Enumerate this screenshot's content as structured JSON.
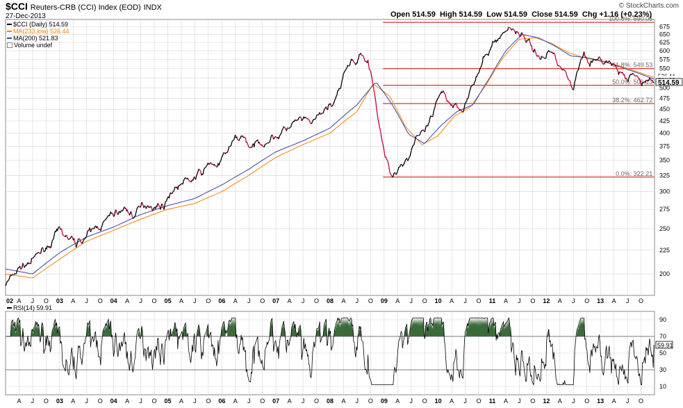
{
  "header": {
    "symbol": "$CCI",
    "description": "Reuters-CRB (CCI) Index (EOD)",
    "exchange": "INDX",
    "date": "27-Dec-2013",
    "brand": "© StockCharts.com",
    "open_label": "Open",
    "open": "514.59",
    "high_label": "High",
    "high": "514.59",
    "low_label": "Low",
    "low": "514.59",
    "close_label": "Close",
    "close": "514.59",
    "chg_label": "Chg",
    "chg": "+1.16 (+0.23%)"
  },
  "legend": {
    "price": "$CCI (Daily) 514.59",
    "ma233": "MA(233,low) 526.44",
    "ma200": "MA(200) 521.83",
    "volume": "Volume undef",
    "rsi": "RSI(14) 59.91"
  },
  "colors": {
    "price": "#cc0033",
    "price_up": "#000000",
    "ma233": "#ff7f00",
    "ma200": "#3344aa",
    "fib": "#cc0000",
    "grid": "#d4d4d4",
    "rsi": "#000000",
    "rsi_fill": "#3b6b3b"
  },
  "chart_data": [
    {
      "type": "line",
      "title": "Reuters-CRB (CCI) Index (EOD)",
      "y_scale": "log",
      "ylim": [
        180,
        700
      ],
      "y_ticks": [
        200,
        225,
        250,
        275,
        300,
        325,
        350,
        375,
        400,
        425,
        450,
        475,
        500,
        525,
        550,
        575,
        600,
        625,
        650,
        675
      ],
      "x_range": [
        2002.0,
        2014.0
      ],
      "x_tick_labels": [
        "02",
        "A",
        "J",
        "O",
        "03",
        "A",
        "J",
        "O",
        "04",
        "A",
        "J",
        "O",
        "05",
        "A",
        "J",
        "O",
        "06",
        "A",
        "J",
        "O",
        "07",
        "A",
        "J",
        "O",
        "08",
        "A",
        "J",
        "O",
        "09",
        "A",
        "J",
        "O",
        "10",
        "A",
        "J",
        "O",
        "11",
        "A",
        "J",
        "O",
        "12",
        "A",
        "J",
        "O",
        "13",
        "A",
        "J",
        "O"
      ],
      "series": [
        {
          "name": "$CCI (Daily)",
          "last": 514.59,
          "x": [
            2002.0,
            2002.1,
            2002.25,
            2002.4,
            2002.55,
            2002.7,
            2002.85,
            2003.0,
            2003.15,
            2003.3,
            2003.45,
            2003.6,
            2003.75,
            2003.9,
            2004.05,
            2004.2,
            2004.35,
            2004.5,
            2004.65,
            2004.8,
            2004.95,
            2005.05,
            2005.2,
            2005.35,
            2005.5,
            2005.65,
            2005.8,
            2005.95,
            2006.1,
            2006.25,
            2006.4,
            2006.55,
            2006.7,
            2006.85,
            2007.0,
            2007.15,
            2007.3,
            2007.45,
            2007.6,
            2007.75,
            2007.9,
            2008.05,
            2008.2,
            2008.3,
            2008.4,
            2008.5,
            2008.6,
            2008.7,
            2008.8,
            2008.9,
            2008.96,
            2009.05,
            2009.15,
            2009.3,
            2009.45,
            2009.6,
            2009.75,
            2009.9,
            2010.0,
            2010.1,
            2010.25,
            2010.35,
            2010.45,
            2010.55,
            2010.7,
            2010.85,
            2011.0,
            2011.1,
            2011.25,
            2011.33,
            2011.45,
            2011.55,
            2011.65,
            2011.75,
            2011.85,
            2011.95,
            2012.05,
            2012.2,
            2012.3,
            2012.4,
            2012.5,
            2012.6,
            2012.7,
            2012.8,
            2012.9,
            2013.0,
            2013.1,
            2013.2,
            2013.35,
            2013.5,
            2013.6,
            2013.75,
            2013.9,
            2013.99
          ],
          "y": [
            190,
            195,
            205,
            210,
            215,
            225,
            235,
            245,
            238,
            232,
            240,
            245,
            255,
            262,
            270,
            275,
            268,
            275,
            285,
            280,
            283,
            300,
            310,
            315,
            320,
            330,
            345,
            340,
            365,
            385,
            395,
            370,
            380,
            390,
            395,
            405,
            415,
            425,
            415,
            425,
            445,
            465,
            495,
            545,
            575,
            560,
            600,
            575,
            520,
            420,
            380,
            345,
            325,
            345,
            355,
            400,
            395,
            430,
            465,
            480,
            465,
            460,
            455,
            490,
            520,
            570,
            615,
            640,
            660,
            675,
            665,
            650,
            635,
            600,
            595,
            575,
            600,
            580,
            560,
            520,
            500,
            560,
            595,
            580,
            570,
            565,
            570,
            560,
            540,
            510,
            530,
            515,
            520,
            514.59
          ]
        },
        {
          "name": "MA(233,low)",
          "last": 526.44,
          "x": [
            2002.0,
            2002.5,
            2003.0,
            2003.5,
            2004.0,
            2004.5,
            2005.0,
            2005.5,
            2006.0,
            2006.5,
            2007.0,
            2007.5,
            2008.0,
            2008.5,
            2008.8,
            2009.1,
            2009.4,
            2009.7,
            2010.0,
            2010.3,
            2010.6,
            2010.9,
            2011.2,
            2011.5,
            2011.8,
            2012.1,
            2012.4,
            2012.7,
            2013.0,
            2013.3,
            2013.6,
            2013.99
          ],
          "y": [
            200,
            196,
            215,
            235,
            248,
            262,
            275,
            283,
            300,
            325,
            355,
            378,
            400,
            445,
            510,
            480,
            412,
            378,
            395,
            435,
            455,
            510,
            580,
            635,
            640,
            622,
            595,
            580,
            570,
            560,
            545,
            526.44
          ]
        },
        {
          "name": "MA(200)",
          "last": 521.83,
          "x": [
            2002.0,
            2002.5,
            2003.0,
            2003.5,
            2004.0,
            2004.5,
            2005.0,
            2005.5,
            2006.0,
            2006.5,
            2007.0,
            2007.5,
            2008.0,
            2008.5,
            2008.85,
            2009.15,
            2009.45,
            2009.75,
            2010.05,
            2010.35,
            2010.65,
            2010.95,
            2011.25,
            2011.55,
            2011.85,
            2012.15,
            2012.45,
            2012.75,
            2013.05,
            2013.35,
            2013.65,
            2013.99
          ],
          "y": [
            205,
            200,
            222,
            240,
            252,
            268,
            280,
            290,
            310,
            335,
            365,
            385,
            410,
            460,
            515,
            460,
            398,
            380,
            415,
            445,
            460,
            525,
            600,
            650,
            640,
            615,
            585,
            580,
            570,
            555,
            540,
            521.83
          ]
        }
      ],
      "fibonacci": [
        {
          "label": "100.0%: 690.05",
          "value": 690.05
        },
        {
          "label": "61.8%: 549.53",
          "value": 549.53
        },
        {
          "label": "50.0%: 506.13",
          "value": 506.13
        },
        {
          "label": "38.2%: 462.72",
          "value": 462.72
        },
        {
          "label": "0.0%: 322.21",
          "value": 322.21
        }
      ],
      "fib_start_x": 2008.98,
      "fib_end_x": 2013.99,
      "price_tags": [
        "526.44",
        "521.83",
        "514.59"
      ]
    },
    {
      "type": "line",
      "title": "RSI(14)",
      "ylim": [
        0,
        100
      ],
      "y_ticks": [
        10,
        30,
        50,
        70,
        90
      ],
      "reference_lines": [
        30,
        70
      ],
      "last": 59.91,
      "x_range": [
        2002.0,
        2014.0
      ],
      "x_tick_labels": [
        "A",
        "J",
        "O",
        "03",
        "A",
        "J",
        "O",
        "04",
        "A",
        "J",
        "O",
        "05",
        "A",
        "J",
        "O",
        "06",
        "A",
        "J",
        "O",
        "07",
        "A",
        "J",
        "O",
        "08",
        "A",
        "J",
        "O",
        "09",
        "A",
        "J",
        "O",
        "10",
        "A",
        "J",
        "O",
        "11",
        "A",
        "J",
        "O",
        "12",
        "A",
        "J",
        "O",
        "13",
        "A",
        "J",
        "O"
      ]
    }
  ]
}
